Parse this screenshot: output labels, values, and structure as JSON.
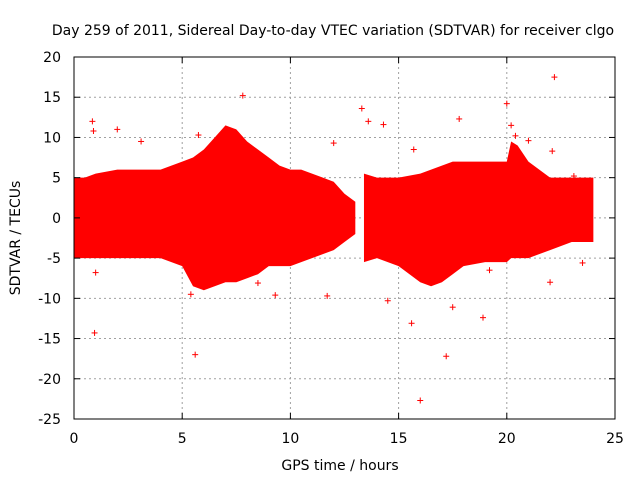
{
  "chart_data": {
    "type": "scatter",
    "title": "Day 259 of 2011, Sidereal Day-to-day VTEC variation (SDTVAR) for receiver clgo",
    "xlabel": "GPS time / hours",
    "ylabel": "SDTVAR / TECUs",
    "xlim": [
      0,
      25
    ],
    "ylim": [
      -25,
      20
    ],
    "x_ticks": [
      0,
      5,
      10,
      15,
      20,
      25
    ],
    "y_ticks": [
      -25,
      -20,
      -15,
      -10,
      -5,
      0,
      5,
      10,
      15,
      20
    ],
    "grid": true,
    "series": [
      {
        "name": "SDTVAR",
        "color": "#ff0000",
        "envelope": {
          "x": [
            0,
            0.5,
            1,
            2,
            3,
            4,
            4.5,
            5,
            5.5,
            6,
            6.5,
            7,
            7.5,
            8,
            8.5,
            9,
            9.5,
            10,
            10.5,
            11,
            11.5,
            12,
            12.5,
            13
          ],
          "upper": [
            5,
            5,
            5.5,
            6,
            6,
            6,
            6.5,
            7,
            7.5,
            8.5,
            10,
            11.5,
            11,
            9.5,
            8.5,
            7.5,
            6.5,
            6,
            6,
            5.5,
            5,
            4.5,
            3,
            2
          ],
          "lower": [
            -5,
            -5,
            -5,
            -5,
            -5,
            -5,
            -5.5,
            -6,
            -8.5,
            -9,
            -8.5,
            -8,
            -8,
            -7.5,
            -7,
            -6,
            -6,
            -6,
            -5.5,
            -5,
            -4.5,
            -4,
            -3,
            -2
          ]
        },
        "envelope_2": {
          "x": [
            13.4,
            14,
            15,
            16,
            16.5,
            17,
            17.5,
            18,
            19,
            20,
            20.2,
            20.5,
            21,
            22,
            23,
            24
          ],
          "upper": [
            5.5,
            5,
            5,
            5.5,
            6,
            6.5,
            7,
            7,
            7,
            7,
            9.5,
            9,
            7,
            5,
            5,
            5
          ],
          "lower": [
            -5.5,
            -5,
            -6,
            -8,
            -8.5,
            -8,
            -7,
            -6,
            -5.5,
            -5.5,
            -5,
            -5,
            -5,
            -4,
            -3,
            -3
          ]
        },
        "outliers": {
          "x": [
            0.85,
            0.9,
            0.95,
            1.0,
            2.0,
            3.1,
            5.4,
            5.6,
            5.75,
            7.8,
            8.5,
            9.3,
            11.7,
            12.0,
            13.3,
            13.6,
            14.3,
            14.5,
            15.6,
            15.7,
            16.0,
            17.2,
            17.5,
            17.8,
            18.9,
            19.2,
            20.0,
            20.2,
            20.4,
            21.0,
            22.0,
            22.1,
            22.2,
            23.1,
            23.5
          ],
          "y": [
            12,
            10.8,
            -14.3,
            -6.8,
            11,
            9.5,
            -9.5,
            -17,
            10.3,
            15.2,
            -8.1,
            -9.6,
            -9.7,
            9.3,
            13.6,
            12,
            11.6,
            -10.3,
            -13.1,
            8.5,
            -22.7,
            -17.2,
            -11.1,
            12.3,
            -12.4,
            -6.5,
            14.2,
            11.5,
            10.2,
            9.6,
            -8,
            8.3,
            17.5,
            5.2,
            -5.6
          ]
        }
      }
    ]
  }
}
